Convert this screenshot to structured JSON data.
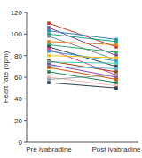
{
  "chart_data": {
    "type": "line",
    "y_label": "Heart rate (bpm)",
    "categories": [
      "Pre ivabradine",
      "Post ivabradine"
    ],
    "ylim": [
      0,
      120
    ],
    "yticks": [
      0,
      20,
      40,
      60,
      80,
      100,
      120
    ],
    "marker": "square",
    "series": [
      {
        "color": "#c0392b",
        "values": [
          110,
          88
        ]
      },
      {
        "color": "#7d3c98",
        "values": [
          106,
          80
        ]
      },
      {
        "color": "#2e86c1",
        "values": [
          103,
          95
        ]
      },
      {
        "color": "#17a589",
        "values": [
          100,
          93
        ]
      },
      {
        "color": "#7f8c8d",
        "values": [
          98,
          76
        ]
      },
      {
        "color": "#e67e22",
        "values": [
          93,
          90
        ]
      },
      {
        "color": "#27ae60",
        "values": [
          90,
          83
        ]
      },
      {
        "color": "#34495e",
        "values": [
          88,
          70
        ]
      },
      {
        "color": "#e84393",
        "values": [
          86,
          62
        ]
      },
      {
        "color": "#3498db",
        "values": [
          84,
          75
        ]
      },
      {
        "color": "#f1c40f",
        "values": [
          80,
          78
        ]
      },
      {
        "color": "#a04000",
        "values": [
          75,
          65
        ]
      },
      {
        "color": "#48c9b0",
        "values": [
          74,
          73
        ]
      },
      {
        "color": "#8e44ad",
        "values": [
          72,
          60
        ]
      },
      {
        "color": "#5dade2",
        "values": [
          70,
          68
        ]
      },
      {
        "color": "#d35400",
        "values": [
          69,
          58
        ]
      },
      {
        "color": "#1e8449",
        "values": [
          65,
          55
        ]
      },
      {
        "color": "#f5b7b1",
        "values": [
          60,
          52
        ]
      },
      {
        "color": "#95a5a6",
        "values": [
          58,
          62
        ]
      },
      {
        "color": "#2c3e50",
        "values": [
          55,
          50
        ]
      }
    ]
  }
}
